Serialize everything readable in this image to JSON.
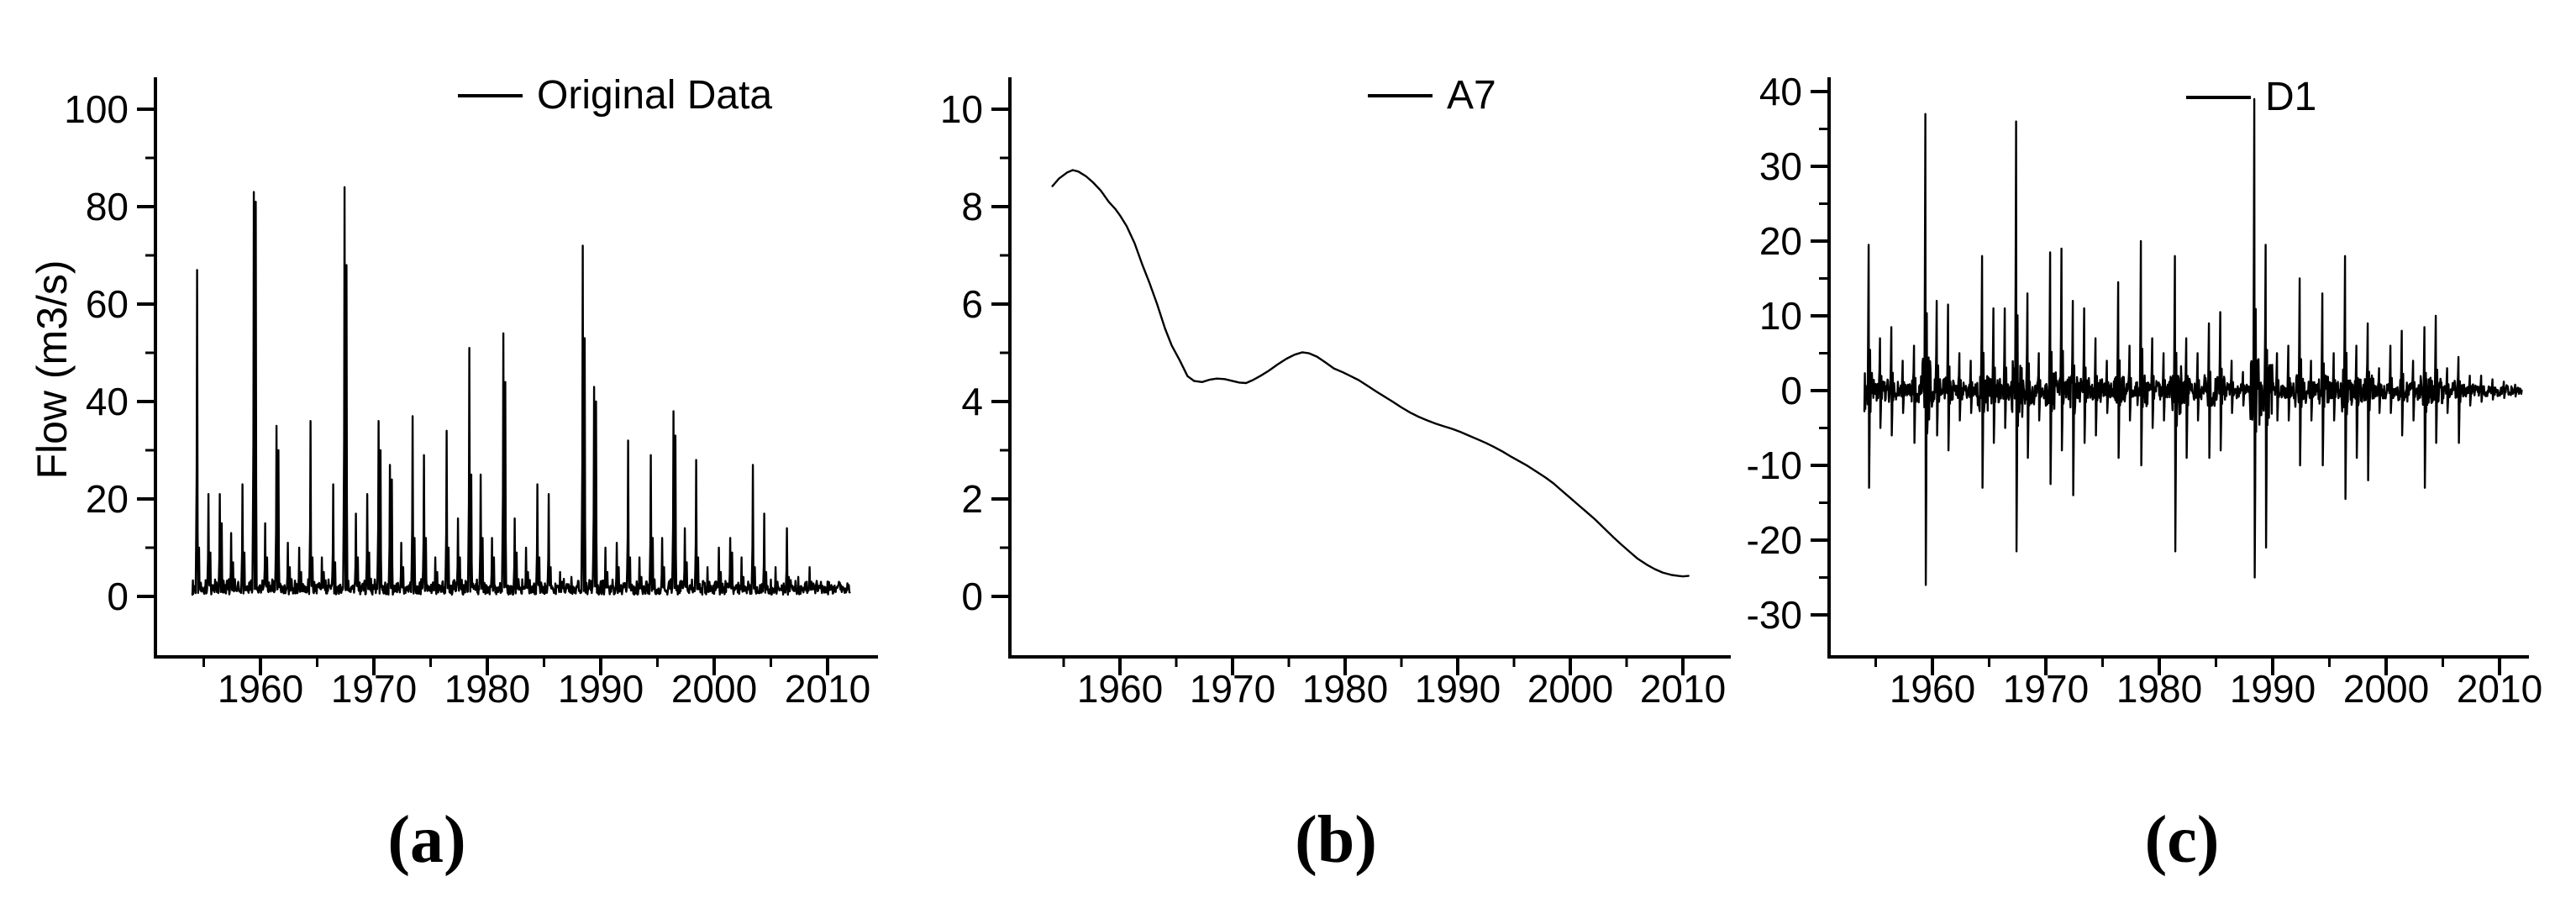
{
  "figure_title": "",
  "captions": {
    "a": "(a)",
    "b": "(b)",
    "c": "(c)"
  },
  "chart_data": [
    {
      "id": "a",
      "type": "line",
      "panel_label": "(a)",
      "legend": "Original Data",
      "ylabel": "Flow (m3/s)",
      "xlabel": "",
      "line_color": "#000000",
      "xlim": [
        1951,
        2014
      ],
      "ylim": [
        0,
        100
      ],
      "x_ticks": [
        1960,
        1970,
        1980,
        1990,
        2000,
        2010
      ],
      "x_minor_ticks": [
        1955,
        1965,
        1975,
        1985,
        1995,
        2005
      ],
      "y_ticks": [
        0,
        20,
        40,
        60,
        80,
        100
      ],
      "y_minor_ticks": [
        10,
        30,
        50,
        70,
        90
      ],
      "grid": false,
      "legend_position": "top-center",
      "series_kind": "flood_hydrograph",
      "annual_events_format": [
        "year",
        "peak_flow",
        "secondary_peak"
      ],
      "annual_events": [
        [
          1954,
          67,
          10
        ],
        [
          1955,
          21,
          9
        ],
        [
          1956,
          21,
          15
        ],
        [
          1957,
          13,
          7
        ],
        [
          1958,
          23,
          9
        ],
        [
          1959,
          83,
          81
        ],
        [
          1960,
          15,
          8
        ],
        [
          1961,
          35,
          30
        ],
        [
          1962,
          11,
          6
        ],
        [
          1963,
          10,
          5
        ],
        [
          1964,
          36,
          8
        ],
        [
          1965,
          8,
          5
        ],
        [
          1966,
          23,
          7
        ],
        [
          1967,
          84,
          68
        ],
        [
          1968,
          17,
          8
        ],
        [
          1969,
          21,
          9
        ],
        [
          1970,
          36,
          30
        ],
        [
          1971,
          27,
          24
        ],
        [
          1972,
          11,
          6
        ],
        [
          1973,
          37,
          12
        ],
        [
          1974,
          29,
          12
        ],
        [
          1975,
          8,
          5
        ],
        [
          1976,
          34,
          10
        ],
        [
          1977,
          16,
          8
        ],
        [
          1978,
          51,
          25
        ],
        [
          1979,
          25,
          12
        ],
        [
          1980,
          12,
          8
        ],
        [
          1981,
          54,
          44
        ],
        [
          1982,
          16,
          9
        ],
        [
          1983,
          10,
          5
        ],
        [
          1984,
          23,
          8
        ],
        [
          1985,
          21,
          6
        ],
        [
          1986,
          5,
          3
        ],
        [
          1987,
          4,
          2
        ],
        [
          1988,
          72,
          53
        ],
        [
          1989,
          43,
          40
        ],
        [
          1990,
          10,
          5
        ],
        [
          1991,
          11,
          6
        ],
        [
          1992,
          32,
          8
        ],
        [
          1993,
          8,
          4
        ],
        [
          1994,
          29,
          12
        ],
        [
          1995,
          12,
          6
        ],
        [
          1996,
          38,
          33
        ],
        [
          1997,
          14,
          7
        ],
        [
          1998,
          28,
          8
        ],
        [
          1999,
          6,
          3
        ],
        [
          2000,
          10,
          5
        ],
        [
          2001,
          12,
          9
        ],
        [
          2002,
          8,
          4
        ],
        [
          2003,
          27,
          6
        ],
        [
          2004,
          17,
          5
        ],
        [
          2005,
          6,
          3
        ],
        [
          2006,
          14,
          4
        ],
        [
          2007,
          4,
          2
        ],
        [
          2008,
          6,
          3
        ],
        [
          2009,
          3,
          2
        ],
        [
          2010,
          2,
          1.5
        ],
        [
          2011,
          1.5,
          1
        ]
      ]
    },
    {
      "id": "b",
      "type": "line",
      "panel_label": "(b)",
      "legend": "A7",
      "ylabel": "",
      "xlabel": "",
      "line_color": "#000000",
      "xlim": [
        1951,
        2014
      ],
      "ylim": [
        0,
        10
      ],
      "x_ticks": [
        1960,
        1970,
        1980,
        1990,
        2000,
        2010
      ],
      "x_minor_ticks": [
        1955,
        1965,
        1975,
        1985,
        1995,
        2005
      ],
      "y_ticks": [
        0,
        2,
        4,
        6,
        8,
        10
      ],
      "y_minor_ticks": [
        1,
        3,
        5,
        7,
        9
      ],
      "grid": false,
      "legend_position": "top-center",
      "series_kind": "points",
      "points": [
        [
          1954,
          8.42
        ],
        [
          1954.6,
          8.58
        ],
        [
          1955.3,
          8.7
        ],
        [
          1955.8,
          8.75
        ],
        [
          1956.3,
          8.72
        ],
        [
          1957,
          8.62
        ],
        [
          1957.6,
          8.5
        ],
        [
          1958.3,
          8.33
        ],
        [
          1959,
          8.1
        ],
        [
          1959.6,
          7.95
        ],
        [
          1960,
          7.82
        ],
        [
          1960.6,
          7.6
        ],
        [
          1961.3,
          7.25
        ],
        [
          1962,
          6.8
        ],
        [
          1962.6,
          6.45
        ],
        [
          1963.3,
          6.0
        ],
        [
          1964,
          5.5
        ],
        [
          1964.6,
          5.15
        ],
        [
          1965.3,
          4.85
        ],
        [
          1966,
          4.52
        ],
        [
          1966.6,
          4.42
        ],
        [
          1967.3,
          4.4
        ],
        [
          1968,
          4.45
        ],
        [
          1968.6,
          4.47
        ],
        [
          1969.3,
          4.46
        ],
        [
          1970,
          4.42
        ],
        [
          1970.6,
          4.39
        ],
        [
          1971.2,
          4.38
        ],
        [
          1971.8,
          4.44
        ],
        [
          1972.5,
          4.53
        ],
        [
          1973.2,
          4.63
        ],
        [
          1974,
          4.76
        ],
        [
          1974.8,
          4.88
        ],
        [
          1975.5,
          4.96
        ],
        [
          1976.2,
          5.01
        ],
        [
          1976.8,
          4.99
        ],
        [
          1977.5,
          4.92
        ],
        [
          1978.2,
          4.81
        ],
        [
          1979,
          4.68
        ],
        [
          1979.8,
          4.6
        ],
        [
          1980.5,
          4.52
        ],
        [
          1981.2,
          4.44
        ],
        [
          1982,
          4.32
        ],
        [
          1982.8,
          4.2
        ],
        [
          1983.5,
          4.1
        ],
        [
          1984.2,
          4.0
        ],
        [
          1985,
          3.88
        ],
        [
          1985.8,
          3.77
        ],
        [
          1986.5,
          3.69
        ],
        [
          1987.2,
          3.62
        ],
        [
          1988,
          3.55
        ],
        [
          1988.8,
          3.49
        ],
        [
          1989.5,
          3.44
        ],
        [
          1990.2,
          3.38
        ],
        [
          1991,
          3.3
        ],
        [
          1991.8,
          3.22
        ],
        [
          1992.5,
          3.15
        ],
        [
          1993.2,
          3.07
        ],
        [
          1994,
          2.97
        ],
        [
          1994.8,
          2.86
        ],
        [
          1995.5,
          2.77
        ],
        [
          1996.2,
          2.68
        ],
        [
          1997,
          2.56
        ],
        [
          1997.8,
          2.44
        ],
        [
          1998.5,
          2.32
        ],
        [
          1999.2,
          2.18
        ],
        [
          2000,
          2.02
        ],
        [
          2000.8,
          1.86
        ],
        [
          2001.5,
          1.72
        ],
        [
          2002.2,
          1.58
        ],
        [
          2003,
          1.4
        ],
        [
          2003.8,
          1.22
        ],
        [
          2004.5,
          1.07
        ],
        [
          2005.2,
          0.93
        ],
        [
          2006,
          0.77
        ],
        [
          2006.8,
          0.65
        ],
        [
          2007.5,
          0.56
        ],
        [
          2008.2,
          0.49
        ],
        [
          2009,
          0.44
        ],
        [
          2009.6,
          0.42
        ],
        [
          2010,
          0.41
        ],
        [
          2010.5,
          0.42
        ]
      ]
    },
    {
      "id": "c",
      "type": "line",
      "panel_label": "(c)",
      "legend": "D1",
      "ylabel": "",
      "xlabel": "",
      "line_color": "#000000",
      "xlim": [
        1951,
        2013
      ],
      "ylim": [
        -30,
        40
      ],
      "x_ticks": [
        1960,
        1970,
        1980,
        1990,
        2000,
        2010
      ],
      "x_minor_ticks": [
        1955,
        1965,
        1975,
        1985,
        1995,
        2005
      ],
      "y_ticks": [
        -30,
        -20,
        -10,
        0,
        10,
        20,
        30,
        40
      ],
      "y_minor_ticks": [
        -25,
        -15,
        -5,
        5,
        15,
        25,
        35
      ],
      "grid": false,
      "legend_position": "top-center",
      "series_kind": "wavelet_detail",
      "annual_events_format": [
        "year",
        "max_up_spike",
        "max_down_spike"
      ],
      "annual_events": [
        [
          1954,
          19.5,
          -13
        ],
        [
          1955,
          7,
          -5
        ],
        [
          1956,
          8.5,
          -6
        ],
        [
          1957,
          4,
          -3
        ],
        [
          1958,
          6,
          -7
        ],
        [
          1959,
          37,
          -26
        ],
        [
          1960,
          12,
          -6
        ],
        [
          1961,
          11.5,
          -8
        ],
        [
          1962,
          5,
          -4
        ],
        [
          1963,
          4,
          -3
        ],
        [
          1964,
          18,
          -13
        ],
        [
          1965,
          11,
          -7
        ],
        [
          1966,
          11,
          -5
        ],
        [
          1967,
          36,
          -21.5
        ],
        [
          1968,
          13,
          -9
        ],
        [
          1969,
          5,
          -4
        ],
        [
          1970,
          18.5,
          -12.5
        ],
        [
          1971,
          19,
          -8
        ],
        [
          1972,
          12,
          -14
        ],
        [
          1973,
          11,
          -7
        ],
        [
          1974,
          7,
          -6
        ],
        [
          1975,
          4,
          -3
        ],
        [
          1976,
          14.5,
          -9
        ],
        [
          1977,
          6,
          -4
        ],
        [
          1978,
          20,
          -10
        ],
        [
          1979,
          7,
          -5
        ],
        [
          1980,
          5,
          -4
        ],
        [
          1981,
          18,
          -21.5
        ],
        [
          1982,
          7,
          -9
        ],
        [
          1983,
          5,
          -4
        ],
        [
          1984,
          9,
          -9
        ],
        [
          1985,
          10.5,
          -8
        ],
        [
          1986,
          4,
          -3
        ],
        [
          1987,
          2.5,
          -2
        ],
        [
          1988,
          39,
          -25
        ],
        [
          1989,
          19.5,
          -21
        ],
        [
          1990,
          5,
          -4
        ],
        [
          1991,
          6,
          -4
        ],
        [
          1992,
          15,
          -10
        ],
        [
          1993,
          4,
          -4
        ],
        [
          1994,
          13,
          -10
        ],
        [
          1995,
          5,
          -4
        ],
        [
          1996,
          18,
          -14.5
        ],
        [
          1997,
          6,
          -9
        ],
        [
          1998,
          9,
          -12
        ],
        [
          1999,
          3,
          -3
        ],
        [
          2000,
          6,
          -3
        ],
        [
          2001,
          8,
          -6
        ],
        [
          2002,
          4,
          -4
        ],
        [
          2003,
          8.5,
          -13
        ],
        [
          2004,
          10,
          -7
        ],
        [
          2005,
          3,
          -3
        ],
        [
          2006,
          4.5,
          -7
        ],
        [
          2007,
          2,
          -2
        ],
        [
          2008,
          2,
          -1.5
        ],
        [
          2009,
          1.5,
          -1.2
        ],
        [
          2010,
          1.2,
          -1
        ],
        [
          2011,
          0.8,
          -0.8
        ]
      ]
    }
  ]
}
